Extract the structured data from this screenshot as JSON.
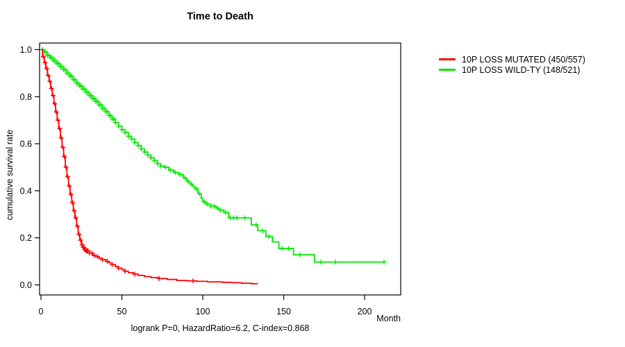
{
  "title": "Time to Death",
  "caption": "logrank P=0, HazardRatio=6.2, C-index=0.868",
  "axes": {
    "y_label": "cumulative survival rate",
    "x_label": "Month"
  },
  "legend": [
    {
      "label": "10P LOSS MUTATED (450/557)",
      "color": "#ff0000"
    },
    {
      "label": "10P LOSS WILD-TY (148/521)",
      "color": "#00e600"
    }
  ],
  "chart_data": {
    "type": "line",
    "subtype": "kaplan-meier-step",
    "title": "Time to Death",
    "xlabel": "Month",
    "ylabel": "cumulative survival rate",
    "xlim": [
      0,
      222
    ],
    "ylim": [
      0,
      1.0
    ],
    "x_ticks": [
      0,
      50,
      100,
      150,
      200
    ],
    "y_ticks": [
      0.0,
      0.2,
      0.4,
      0.6,
      0.8,
      1.0
    ],
    "grid": false,
    "legend_position": "right-outside",
    "annotation": "logrank P=0, HazardRatio=6.2, C-index=0.868",
    "series": [
      {
        "name": "10P LOSS MUTATED (450/557)",
        "color": "#ff0000",
        "events_total": "450/557",
        "steps": [
          [
            0,
            1.0
          ],
          [
            1,
            0.97
          ],
          [
            2,
            0.945
          ],
          [
            3,
            0.92
          ],
          [
            4,
            0.89
          ],
          [
            5,
            0.865
          ],
          [
            6,
            0.835
          ],
          [
            7,
            0.805
          ],
          [
            8,
            0.77
          ],
          [
            9,
            0.735
          ],
          [
            10,
            0.7
          ],
          [
            11,
            0.665
          ],
          [
            12,
            0.625
          ],
          [
            13,
            0.585
          ],
          [
            14,
            0.545
          ],
          [
            15,
            0.5
          ],
          [
            16,
            0.46
          ],
          [
            17,
            0.42
          ],
          [
            18,
            0.385
          ],
          [
            19,
            0.35
          ],
          [
            20,
            0.315
          ],
          [
            21,
            0.285
          ],
          [
            22,
            0.25
          ],
          [
            23,
            0.215
          ],
          [
            24,
            0.19
          ],
          [
            25,
            0.17
          ],
          [
            26,
            0.16
          ],
          [
            27,
            0.15
          ],
          [
            28,
            0.145
          ],
          [
            30,
            0.135
          ],
          [
            32,
            0.125
          ],
          [
            34,
            0.12
          ],
          [
            36,
            0.113
          ],
          [
            38,
            0.107
          ],
          [
            40,
            0.1
          ],
          [
            42,
            0.094
          ],
          [
            44,
            0.086
          ],
          [
            46,
            0.078
          ],
          [
            48,
            0.071
          ],
          [
            50,
            0.065
          ],
          [
            52,
            0.058
          ],
          [
            54,
            0.052
          ],
          [
            57,
            0.046
          ],
          [
            60,
            0.04
          ],
          [
            64,
            0.035
          ],
          [
            68,
            0.031
          ],
          [
            73,
            0.027
          ],
          [
            78,
            0.023
          ],
          [
            84,
            0.019
          ],
          [
            90,
            0.017
          ],
          [
            96,
            0.015
          ],
          [
            103,
            0.013
          ],
          [
            112,
            0.011
          ],
          [
            118,
            0.009
          ],
          [
            124,
            0.007
          ],
          [
            130,
            0.005
          ],
          [
            134,
            0.005
          ]
        ],
        "censor_months": [
          1.5,
          2.5,
          3.5,
          4.5,
          5.5,
          6.5,
          7.5,
          8.5,
          9.5,
          10.5,
          11.5,
          12.5,
          13.5,
          14.5,
          15.5,
          16.5,
          17.5,
          18.5,
          19.5,
          20.5,
          21.5,
          22.5,
          23.5,
          24.5,
          25.5,
          26,
          26.5,
          27,
          27.5,
          28,
          28.5,
          29,
          30,
          31.5,
          33,
          35,
          38,
          41,
          44,
          48,
          52,
          58,
          73,
          94
        ]
      },
      {
        "name": "10P LOSS WILD-TY (148/521)",
        "color": "#00e600",
        "events_total": "148/521",
        "steps": [
          [
            0,
            1.0
          ],
          [
            2,
            0.99
          ],
          [
            4,
            0.975
          ],
          [
            6,
            0.965
          ],
          [
            8,
            0.952
          ],
          [
            10,
            0.94
          ],
          [
            12,
            0.927
          ],
          [
            14,
            0.915
          ],
          [
            16,
            0.9
          ],
          [
            18,
            0.887
          ],
          [
            20,
            0.872
          ],
          [
            22,
            0.857
          ],
          [
            24,
            0.845
          ],
          [
            26,
            0.832
          ],
          [
            28,
            0.818
          ],
          [
            30,
            0.805
          ],
          [
            32,
            0.792
          ],
          [
            34,
            0.779
          ],
          [
            36,
            0.765
          ],
          [
            38,
            0.75
          ],
          [
            40,
            0.736
          ],
          [
            42,
            0.72
          ],
          [
            44,
            0.705
          ],
          [
            46,
            0.69
          ],
          [
            48,
            0.675
          ],
          [
            50,
            0.66
          ],
          [
            52,
            0.648
          ],
          [
            54,
            0.632
          ],
          [
            56,
            0.62
          ],
          [
            58,
            0.605
          ],
          [
            60,
            0.592
          ],
          [
            62,
            0.578
          ],
          [
            64,
            0.565
          ],
          [
            66,
            0.552
          ],
          [
            68,
            0.54
          ],
          [
            70,
            0.528
          ],
          [
            72,
            0.515
          ],
          [
            74,
            0.505
          ],
          [
            76,
            0.5
          ],
          [
            79,
            0.488
          ],
          [
            82,
            0.478
          ],
          [
            85,
            0.469
          ],
          [
            88,
            0.455
          ],
          [
            90,
            0.44
          ],
          [
            92,
            0.428
          ],
          [
            94,
            0.418
          ],
          [
            95,
            0.408
          ],
          [
            97,
            0.388
          ],
          [
            99,
            0.368
          ],
          [
            100,
            0.353
          ],
          [
            102,
            0.343
          ],
          [
            105,
            0.335
          ],
          [
            108,
            0.327
          ],
          [
            110,
            0.318
          ],
          [
            113,
            0.308
          ],
          [
            116,
            0.285
          ],
          [
            130,
            0.255
          ],
          [
            134,
            0.23
          ],
          [
            139,
            0.206
          ],
          [
            143,
            0.183
          ],
          [
            147,
            0.155
          ],
          [
            156,
            0.128
          ],
          [
            169,
            0.097
          ],
          [
            212,
            0.097
          ]
        ],
        "censor_months": [
          1,
          2,
          3,
          4,
          5,
          6,
          7,
          8,
          9,
          10,
          11,
          12,
          13,
          14,
          15,
          16,
          17,
          18,
          19,
          20,
          21,
          22,
          23,
          24,
          25,
          26,
          27,
          28,
          29,
          30,
          31,
          32,
          33,
          34,
          35,
          36,
          37,
          38,
          39,
          40,
          41,
          42,
          43,
          44,
          45,
          46,
          48,
          50,
          52,
          54,
          56,
          58,
          60,
          62,
          64,
          66,
          68,
          70,
          72,
          74,
          77,
          80,
          83,
          86,
          89,
          91,
          93,
          96,
          98,
          101,
          103,
          105,
          107,
          109,
          111,
          114,
          117,
          119,
          121,
          126,
          133,
          137,
          141,
          149,
          153,
          160,
          173,
          182,
          212
        ]
      }
    ]
  }
}
